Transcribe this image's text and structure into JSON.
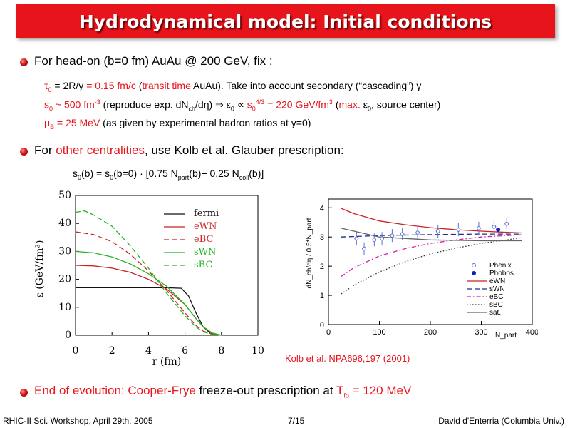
{
  "title": "Hydrodynamical model: Initial conditions",
  "bullet1": {
    "text": "For head-on (b=0 fm) AuAu @ 200 GeV, fix :"
  },
  "line_tau": {
    "sym": "τ",
    "sub": "0",
    "a": " = 2R/γ ",
    "b_red": "= 0.15 fm/c",
    "c": "  (",
    "d_red": "transit time",
    "e": " AuAu). Take into account secondary (“cascading”) γ"
  },
  "line_s0": {
    "a_red": "s",
    "a_sub": "0",
    "b_red": " ~ 500 fm",
    "b_sup": "-3",
    "c": " (reproduce exp. dN",
    "c_sub": "ch",
    "d": "/dη) ⇒ ε",
    "d_sub": "0",
    "e": " ∝ ",
    "f_red": "s",
    "f_sub": "0",
    "f_sup": "4/3",
    "g_red": " = 220 GeV/fm",
    "g_sup": "3",
    "h": " (",
    "i_red": "max.",
    "j": " ε",
    "j_sub": "0",
    "k": ", source center)"
  },
  "line_mu": {
    "a_red": "μ",
    "a_sub": "B",
    "b_red": " = 25 MeV",
    "c": " (as given by experimental hadron ratios at y=0)"
  },
  "bullet2": {
    "a": "For ",
    "b_red": "other centralities",
    "c": ", use Kolb et al. Glauber prescription:"
  },
  "formula": {
    "a": "s",
    "a_sub": "0",
    "b": "(b) = s",
    "b_sub": "0",
    "c": "(b=0)",
    "dot": "·",
    "lb": "[",
    "d": "0.75 N",
    "d_sub": "part",
    "e": "(b)+ 0.25 N",
    "e_sub": "coll",
    "f": "(b)",
    "rb": "]"
  },
  "citation": "Kolb et al. NPA696,197 (2001)",
  "bullet3": {
    "a_red": "End of evolution: Cooper-Frye",
    "b": " freeze-out prescription at ",
    "c_red": "T",
    "c_sub": "fo",
    "d_red": " = 120 MeV"
  },
  "footer": {
    "left": "RHIC-II Sci. Workshop, April 29th, 2005",
    "center": "7/15",
    "right": "David d'Enterria (Columbia Univ.)"
  },
  "chart_data": [
    {
      "type": "line",
      "xlabel": "r  (fm)",
      "ylabel": "ε  (GeV/fm³)",
      "xlim": [
        0,
        10
      ],
      "ylim": [
        0,
        50
      ],
      "xticks": [
        0,
        2,
        4,
        6,
        8,
        10
      ],
      "yticks": [
        0,
        10,
        20,
        30,
        40,
        50
      ],
      "legend_position": "top-right",
      "series": [
        {
          "name": "fermi",
          "color": "#111111",
          "dash": "solid",
          "points": [
            [
              0,
              17
            ],
            [
              4,
              17
            ],
            [
              5,
              17
            ],
            [
              5.8,
              16.8
            ],
            [
              6.2,
              14
            ],
            [
              6.6,
              8
            ],
            [
              7,
              3
            ],
            [
              7.4,
              0.7
            ],
            [
              8,
              0
            ]
          ]
        },
        {
          "name": "eWN",
          "color": "#cc2222",
          "dash": "solid",
          "points": [
            [
              0,
              25
            ],
            [
              1,
              24.8
            ],
            [
              2,
              24
            ],
            [
              3,
              22.5
            ],
            [
              4,
              20
            ],
            [
              5,
              16.5
            ],
            [
              6,
              11
            ],
            [
              6.6,
              6
            ],
            [
              7,
              3
            ],
            [
              7.5,
              0.8
            ],
            [
              8,
              0
            ]
          ]
        },
        {
          "name": "eBC",
          "color": "#cc2222",
          "dash": "dashed",
          "points": [
            [
              0,
              37
            ],
            [
              1,
              36
            ],
            [
              2,
              33.5
            ],
            [
              3,
              29
            ],
            [
              4,
              23
            ],
            [
              5,
              16
            ],
            [
              6,
              8
            ],
            [
              6.6,
              3.5
            ],
            [
              7,
              1.5
            ],
            [
              7.5,
              0.4
            ],
            [
              8,
              0
            ]
          ]
        },
        {
          "name": "sWN",
          "color": "#22b522",
          "dash": "solid",
          "points": [
            [
              0,
              30
            ],
            [
              1,
              29.5
            ],
            [
              2,
              28
            ],
            [
              3,
              25.5
            ],
            [
              4,
              22
            ],
            [
              5,
              17.5
            ],
            [
              6,
              11
            ],
            [
              6.6,
              6
            ],
            [
              7,
              3
            ],
            [
              7.5,
              0.8
            ],
            [
              8,
              0
            ]
          ]
        },
        {
          "name": "sBC",
          "color": "#22b522",
          "dash": "dashed",
          "points": [
            [
              0,
              44
            ],
            [
              0.5,
              44.5
            ],
            [
              1,
              43
            ],
            [
              2,
              39
            ],
            [
              3,
              32
            ],
            [
              4,
              24
            ],
            [
              5,
              15
            ],
            [
              6,
              7
            ],
            [
              6.6,
              3
            ],
            [
              7,
              1.2
            ],
            [
              7.5,
              0.3
            ],
            [
              8,
              0
            ]
          ]
        }
      ]
    },
    {
      "type": "line",
      "xlabel": "N_part",
      "ylabel": "dN_ch/dη / 0.5*N_part",
      "xlim": [
        0,
        400
      ],
      "ylim": [
        0,
        4.3
      ],
      "xticks": [
        0,
        100,
        200,
        300,
        400
      ],
      "yticks": [
        0,
        1,
        2,
        3,
        4
      ],
      "legend_position": "bottom-right",
      "series": [
        {
          "name": "eWN",
          "color": "#cc2222",
          "dash": "solid",
          "points": [
            [
              25,
              3.98
            ],
            [
              50,
              3.8
            ],
            [
              100,
              3.55
            ],
            [
              150,
              3.42
            ],
            [
              200,
              3.32
            ],
            [
              250,
              3.25
            ],
            [
              300,
              3.2
            ],
            [
              350,
              3.16
            ],
            [
              380,
              3.14
            ]
          ]
        },
        {
          "name": "sWN",
          "color": "#1a2f8a",
          "dash": "dashed",
          "points": [
            [
              25,
              3.0
            ],
            [
              100,
              3.05
            ],
            [
              200,
              3.08
            ],
            [
              300,
              3.1
            ],
            [
              380,
              3.1
            ]
          ]
        },
        {
          "name": "eBC",
          "color": "#d020b0",
          "dash": "dashdot",
          "points": [
            [
              25,
              1.65
            ],
            [
              50,
              1.95
            ],
            [
              100,
              2.35
            ],
            [
              150,
              2.6
            ],
            [
              200,
              2.78
            ],
            [
              250,
              2.9
            ],
            [
              300,
              3.0
            ],
            [
              350,
              3.05
            ],
            [
              380,
              3.08
            ]
          ]
        },
        {
          "name": "sBC",
          "color": "#333333",
          "dash": "dotted",
          "points": [
            [
              25,
              1.05
            ],
            [
              50,
              1.35
            ],
            [
              100,
              1.8
            ],
            [
              150,
              2.15
            ],
            [
              200,
              2.42
            ],
            [
              250,
              2.62
            ],
            [
              300,
              2.78
            ],
            [
              350,
              2.9
            ],
            [
              380,
              2.98
            ]
          ]
        },
        {
          "name": "sat.",
          "color": "#666666",
          "dash": "solid",
          "points": [
            [
              25,
              3.3
            ],
            [
              100,
              3.0
            ],
            [
              200,
              2.9
            ],
            [
              300,
              2.87
            ],
            [
              380,
              2.87
            ]
          ]
        }
      ],
      "points": [
        {
          "name": "Phenix",
          "color": "#5a6fd0",
          "marker": "open-cross",
          "data": [
            [
              55,
              2.95
            ],
            [
              70,
              2.6
            ],
            [
              90,
              2.9
            ],
            [
              105,
              2.95
            ],
            [
              125,
              3.05
            ],
            [
              145,
              3.1
            ],
            [
              175,
              3.15
            ],
            [
              215,
              3.2
            ],
            [
              255,
              3.25
            ],
            [
              295,
              3.3
            ],
            [
              325,
              3.35
            ],
            [
              350,
              3.45
            ]
          ]
        },
        {
          "name": "Phobos",
          "color": "#1020c0",
          "marker": "filled-circle",
          "data": [
            [
              333,
              3.25
            ]
          ]
        }
      ]
    }
  ]
}
